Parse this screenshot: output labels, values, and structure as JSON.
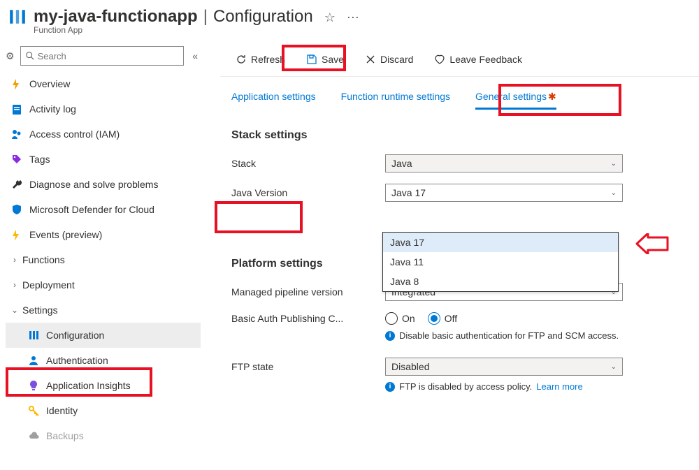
{
  "header": {
    "title": "my-java-functionapp",
    "section": "Configuration",
    "subtitle": "Function App"
  },
  "sidebar": {
    "search_placeholder": "Search",
    "items": [
      {
        "label": "Overview",
        "icon": "bolt",
        "color": "#f2a100"
      },
      {
        "label": "Activity log",
        "icon": "log",
        "color": "#0078d4"
      },
      {
        "label": "Access control (IAM)",
        "icon": "iam",
        "color": "#0078d4"
      },
      {
        "label": "Tags",
        "icon": "tag",
        "color": "#8a2be2"
      },
      {
        "label": "Diagnose and solve problems",
        "icon": "wrench",
        "color": "#323130"
      },
      {
        "label": "Microsoft Defender for Cloud",
        "icon": "shield",
        "color": "#0078d4"
      },
      {
        "label": "Events (preview)",
        "icon": "bolt",
        "color": "#ffb900"
      }
    ],
    "groups": [
      {
        "chev": "›",
        "label": "Functions"
      },
      {
        "chev": "›",
        "label": "Deployment"
      },
      {
        "chev": "⌄",
        "label": "Settings"
      }
    ],
    "subitems": [
      {
        "label": "Configuration",
        "icon": "bars",
        "color": "#0078d4",
        "selected": true
      },
      {
        "label": "Authentication",
        "icon": "person",
        "color": "#0078d4"
      },
      {
        "label": "Application Insights",
        "icon": "bulb",
        "color": "#7b4fe0"
      },
      {
        "label": "Identity",
        "icon": "key",
        "color": "#ffb900"
      },
      {
        "label": "Backups",
        "icon": "cloud",
        "color": "#a19f9d",
        "faded": true
      }
    ]
  },
  "toolbar": {
    "refresh": "Refresh",
    "save": "Save",
    "discard": "Discard",
    "feedback": "Leave Feedback"
  },
  "tabs": {
    "app": "Application settings",
    "runtime": "Function runtime settings",
    "general": "General settings"
  },
  "stack": {
    "heading": "Stack settings",
    "stack_label": "Stack",
    "stack_value": "Java",
    "ver_label": "Java Version",
    "ver_value": "Java 17",
    "ver_options": [
      "Java 17",
      "Java 11",
      "Java 8"
    ]
  },
  "platform": {
    "heading": "Platform settings",
    "pipeline_label": "Managed pipeline version",
    "pipeline_value": "Integrated",
    "basic_auth_label": "Basic Auth Publishing C...",
    "on": "On",
    "off": "Off",
    "auth_info": "Disable basic authentication for FTP and SCM access.",
    "ftp_label": "FTP state",
    "ftp_value": "Disabled",
    "ftp_info": "FTP is disabled by access policy.",
    "ftp_link": "Learn more"
  },
  "highlight_color": "#e81123"
}
